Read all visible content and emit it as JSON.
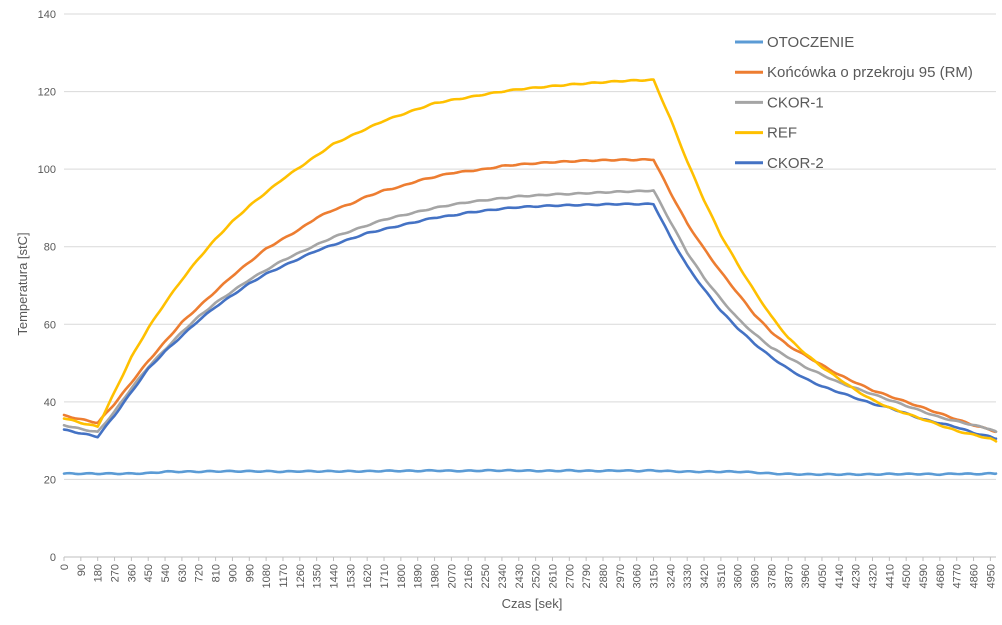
{
  "chart_data": {
    "type": "line",
    "title": "",
    "xlabel": "Czas [sek]",
    "ylabel": "Temperatura [stC]",
    "ylim": [
      0,
      140
    ],
    "y_ticks": [
      0,
      20,
      40,
      60,
      80,
      100,
      120,
      140
    ],
    "xlim": [
      0,
      4980
    ],
    "x_tick_labels": [
      "0",
      "90",
      "180",
      "270",
      "360",
      "450",
      "540",
      "630",
      "720",
      "810",
      "900",
      "990",
      "1080",
      "1170",
      "1260",
      "1350",
      "1440",
      "1530",
      "1620",
      "1710",
      "1800",
      "1890",
      "1980",
      "2070",
      "2160",
      "2250",
      "2340",
      "2430",
      "2520",
      "2610",
      "2700",
      "2790",
      "2880",
      "2970",
      "3060",
      "3150",
      "3240",
      "3330",
      "3420",
      "3510",
      "3600",
      "3690",
      "3780",
      "3870",
      "3960",
      "4050",
      "4140",
      "4230",
      "4320",
      "4410",
      "4500",
      "4590",
      "4680",
      "4770",
      "4860",
      "4950"
    ],
    "grid": "horizontal",
    "legend_position": "right",
    "x": [
      0,
      90,
      180,
      270,
      360,
      450,
      540,
      630,
      720,
      810,
      900,
      990,
      1080,
      1170,
      1260,
      1350,
      1440,
      1530,
      1620,
      1710,
      1800,
      1890,
      1980,
      2070,
      2160,
      2250,
      2340,
      2430,
      2520,
      2610,
      2700,
      2790,
      2880,
      2970,
      3060,
      3150,
      3240,
      3330,
      3420,
      3510,
      3600,
      3690,
      3780,
      3870,
      3960,
      4050,
      4140,
      4230,
      4320,
      4410,
      4500,
      4590,
      4680,
      4770,
      4860,
      4950,
      4980
    ],
    "series": [
      {
        "name": "OTOCZENIE",
        "color": "#5B9BD5",
        "values": [
          21.5,
          21.5,
          21.5,
          21.5,
          21.5,
          21.6,
          22.0,
          22.0,
          22.0,
          22.1,
          22.1,
          22.1,
          22.1,
          22.0,
          22.1,
          22.1,
          22.1,
          22.1,
          22.1,
          22.2,
          22.2,
          22.2,
          22.3,
          22.2,
          22.2,
          22.3,
          22.3,
          22.3,
          22.2,
          22.2,
          22.3,
          22.2,
          22.2,
          22.3,
          22.2,
          22.3,
          22.1,
          22.0,
          22.0,
          22.0,
          22.0,
          21.8,
          21.5,
          21.4,
          21.3,
          21.3,
          21.3,
          21.3,
          21.3,
          21.4,
          21.4,
          21.4,
          21.3,
          21.5,
          21.4,
          21.5,
          21.5
        ]
      },
      {
        "name": "Końcówka o przekroju 95 (RM)",
        "color": "#ED7D31",
        "values": [
          36.5,
          35.5,
          34.6,
          39.5,
          45.0,
          50.5,
          55.5,
          60.5,
          64.5,
          68.5,
          72.5,
          76.0,
          79.5,
          82.0,
          84.5,
          87.5,
          89.5,
          91.0,
          93.0,
          94.5,
          95.5,
          97.0,
          98.0,
          99.0,
          99.5,
          100.0,
          100.8,
          101.2,
          101.5,
          101.8,
          102.0,
          102.2,
          102.3,
          102.4,
          102.4,
          102.5,
          94.0,
          86.0,
          79.5,
          73.5,
          68.0,
          62.5,
          58.0,
          54.5,
          52.0,
          49.5,
          47.0,
          45.0,
          43.0,
          41.5,
          40.0,
          38.5,
          37.0,
          35.5,
          34.0,
          32.8,
          32.3
        ]
      },
      {
        "name": "CKOR-1",
        "color": "#A5A5A5",
        "values": [
          34.0,
          33.0,
          32.2,
          37.5,
          43.5,
          49.0,
          53.5,
          58.0,
          62.0,
          65.5,
          68.5,
          71.5,
          74.0,
          76.5,
          78.5,
          80.5,
          82.5,
          84.0,
          85.5,
          87.0,
          88.0,
          89.0,
          90.0,
          90.8,
          91.5,
          92.0,
          92.5,
          93.0,
          93.2,
          93.5,
          93.6,
          93.8,
          94.0,
          94.2,
          94.3,
          94.5,
          86.5,
          78.5,
          72.0,
          66.5,
          61.5,
          57.5,
          54.0,
          51.5,
          49.0,
          47.0,
          45.0,
          43.5,
          42.0,
          40.5,
          39.0,
          37.5,
          36.0,
          35.0,
          34.0,
          33.0,
          32.3
        ]
      },
      {
        "name": "REF",
        "color": "#FFC000",
        "values": [
          35.8,
          34.6,
          33.6,
          42.5,
          51.5,
          59.0,
          65.5,
          71.5,
          77.0,
          82.0,
          86.5,
          90.5,
          94.0,
          97.5,
          100.5,
          103.5,
          106.5,
          108.5,
          110.5,
          112.5,
          114.0,
          115.5,
          117.0,
          117.8,
          118.5,
          119.3,
          120.0,
          120.6,
          121.0,
          121.4,
          121.8,
          122.1,
          122.4,
          122.7,
          122.9,
          123.0,
          113.0,
          102.0,
          92.0,
          83.0,
          75.5,
          68.5,
          62.0,
          56.5,
          52.5,
          49.0,
          46.0,
          43.0,
          40.5,
          38.5,
          37.0,
          35.5,
          34.0,
          32.5,
          31.5,
          30.5,
          29.8
        ]
      },
      {
        "name": "CKOR-2",
        "color": "#4472C4",
        "values": [
          32.8,
          31.9,
          31.0,
          36.5,
          42.5,
          48.5,
          53.0,
          57.0,
          61.0,
          64.5,
          67.5,
          70.5,
          73.0,
          75.0,
          77.0,
          79.0,
          80.5,
          82.0,
          83.5,
          84.5,
          85.5,
          86.5,
          87.5,
          88.0,
          88.8,
          89.3,
          89.8,
          90.2,
          90.4,
          90.6,
          90.7,
          90.8,
          90.9,
          91.0,
          91.0,
          91.0,
          82.5,
          75.0,
          69.0,
          63.5,
          59.0,
          55.0,
          51.5,
          48.5,
          46.0,
          44.0,
          42.5,
          41.0,
          39.5,
          38.5,
          37.0,
          35.5,
          34.5,
          33.5,
          32.0,
          31.0,
          30.5
        ]
      }
    ]
  }
}
